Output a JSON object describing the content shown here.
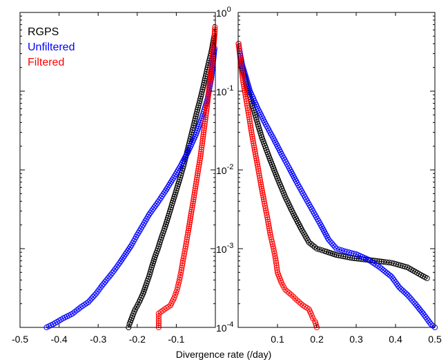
{
  "chart_data": {
    "type": "scatter",
    "xlabel": "Divergence rate (/day)",
    "yscale": "log",
    "ylim": [
      0.0001,
      1
    ],
    "legend": {
      "placement": "top-left",
      "entries": [
        {
          "label": "RGPS",
          "color": "#000000"
        },
        {
          "label": "Unfiltered",
          "color": "#0000ff"
        },
        {
          "label": "Filtered",
          "color": "#ff0000"
        }
      ]
    },
    "y_ticks": [
      {
        "base": "10",
        "exp": "0",
        "value": 1
      },
      {
        "base": "10",
        "exp": "-1",
        "value": 0.1
      },
      {
        "base": "10",
        "exp": "-2",
        "value": 0.01
      },
      {
        "base": "10",
        "exp": "-3",
        "value": 0.001
      },
      {
        "base": "10",
        "exp": "-4",
        "value": 0.0001
      }
    ],
    "panels": [
      {
        "name": "negative",
        "xlim": [
          -0.5,
          0
        ],
        "x_ticks": [
          "-0.5",
          "-0.4",
          "-0.3",
          "-0.2",
          "-0.1"
        ],
        "x_tick_values": [
          -0.5,
          -0.4,
          -0.3,
          -0.2,
          -0.1
        ],
        "series": [
          {
            "key": "rgps",
            "color": "#000000",
            "points": [
              [
                -0.222,
                0.0001
              ],
              [
                -0.22,
                0.00011
              ],
              [
                -0.212,
                0.00014
              ],
              [
                -0.205,
                0.00017
              ],
              [
                -0.195,
                0.00021
              ],
              [
                -0.185,
                0.00027
              ],
              [
                -0.178,
                0.00034
              ],
              [
                -0.17,
                0.00044
              ],
              [
                -0.163,
                0.00058
              ],
              [
                -0.155,
                0.00078
              ],
              [
                -0.147,
                0.001
              ],
              [
                -0.14,
                0.0013
              ],
              [
                -0.13,
                0.0018
              ],
              [
                -0.12,
                0.0026
              ],
              [
                -0.11,
                0.0038
              ],
              [
                -0.1,
                0.0055
              ],
              [
                -0.09,
                0.008
              ],
              [
                -0.08,
                0.012
              ],
              [
                -0.07,
                0.019
              ],
              [
                -0.06,
                0.03
              ],
              [
                -0.05,
                0.048
              ],
              [
                -0.04,
                0.075
              ],
              [
                -0.03,
                0.12
              ],
              [
                -0.02,
                0.2
              ],
              [
                -0.01,
                0.32
              ],
              [
                -0.003,
                0.5
              ]
            ]
          },
          {
            "key": "unfiltered",
            "color": "#0000ff",
            "points": [
              [
                -0.432,
                0.0001
              ],
              [
                -0.415,
                0.00011
              ],
              [
                -0.39,
                0.00013
              ],
              [
                -0.365,
                0.00015
              ],
              [
                -0.345,
                0.00018
              ],
              [
                -0.325,
                0.00021
              ],
              [
                -0.305,
                0.00027
              ],
              [
                -0.29,
                0.00034
              ],
              [
                -0.275,
                0.00042
              ],
              [
                -0.26,
                0.00052
              ],
              [
                -0.245,
                0.00066
              ],
              [
                -0.23,
                0.00085
              ],
              [
                -0.215,
                0.0011
              ],
              [
                -0.2,
                0.0015
              ],
              [
                -0.185,
                0.002
              ],
              [
                -0.17,
                0.0027
              ],
              [
                -0.15,
                0.0037
              ],
              [
                -0.13,
                0.0052
              ],
              [
                -0.11,
                0.0075
              ],
              [
                -0.09,
                0.011
              ],
              [
                -0.07,
                0.017
              ],
              [
                -0.05,
                0.028
              ],
              [
                -0.035,
                0.045
              ],
              [
                -0.02,
                0.08
              ],
              [
                -0.01,
                0.15
              ],
              [
                -0.002,
                0.35
              ]
            ]
          },
          {
            "key": "filtered",
            "color": "#ff0000",
            "points": [
              [
                -0.145,
                0.0001
              ],
              [
                -0.145,
                0.00012
              ],
              [
                -0.145,
                0.00015
              ],
              [
                -0.13,
                0.00017
              ],
              [
                -0.115,
                0.00019
              ],
              [
                -0.105,
                0.00024
              ],
              [
                -0.098,
                0.0003
              ],
              [
                -0.092,
                0.0004
              ],
              [
                -0.088,
                0.0005
              ],
              [
                -0.083,
                0.0007
              ],
              [
                -0.077,
                0.001
              ],
              [
                -0.07,
                0.0016
              ],
              [
                -0.063,
                0.0026
              ],
              [
                -0.055,
                0.0045
              ],
              [
                -0.047,
                0.008
              ],
              [
                -0.038,
                0.015
              ],
              [
                -0.03,
                0.03
              ],
              [
                -0.022,
                0.06
              ],
              [
                -0.015,
                0.12
              ],
              [
                -0.008,
                0.25
              ],
              [
                -0.003,
                0.45
              ],
              [
                -0.001,
                0.65
              ]
            ]
          }
        ]
      },
      {
        "name": "positive",
        "xlim": [
          0,
          0.5
        ],
        "x_ticks": [
          "0.1",
          "0.2",
          "0.3",
          "0.4",
          "0.5"
        ],
        "x_tick_values": [
          0.1,
          0.2,
          0.3,
          0.4,
          0.5
        ],
        "series": [
          {
            "key": "rgps",
            "color": "#000000",
            "points": [
              [
                0.001,
                0.4
              ],
              [
                0.005,
                0.28
              ],
              [
                0.01,
                0.2
              ],
              [
                0.02,
                0.13
              ],
              [
                0.03,
                0.085
              ],
              [
                0.04,
                0.057
              ],
              [
                0.05,
                0.038
              ],
              [
                0.06,
                0.026
              ],
              [
                0.08,
                0.014
              ],
              [
                0.1,
                0.0078
              ],
              [
                0.12,
                0.0045
              ],
              [
                0.14,
                0.0028
              ],
              [
                0.16,
                0.0018
              ],
              [
                0.18,
                0.0012
              ],
              [
                0.2,
                0.001
              ],
              [
                0.22,
                0.00093
              ],
              [
                0.25,
                0.00083
              ],
              [
                0.29,
                0.00076
              ],
              [
                0.33,
                0.00072
              ],
              [
                0.37,
                0.00068
              ],
              [
                0.39,
                0.00066
              ],
              [
                0.43,
                0.00058
              ],
              [
                0.48,
                0.00042
              ]
            ]
          },
          {
            "key": "unfiltered",
            "color": "#0000ff",
            "points": [
              [
                0.001,
                0.4
              ],
              [
                0.005,
                0.3
              ],
              [
                0.01,
                0.22
              ],
              [
                0.02,
                0.15
              ],
              [
                0.03,
                0.1
              ],
              [
                0.05,
                0.06
              ],
              [
                0.07,
                0.038
              ],
              [
                0.09,
                0.025
              ],
              [
                0.11,
                0.016
              ],
              [
                0.13,
                0.0105
              ],
              [
                0.15,
                0.0068
              ],
              [
                0.17,
                0.0045
              ],
              [
                0.19,
                0.003
              ],
              [
                0.21,
                0.002
              ],
              [
                0.23,
                0.0013
              ],
              [
                0.25,
                0.001
              ],
              [
                0.27,
                0.00093
              ],
              [
                0.3,
                0.00085
              ],
              [
                0.33,
                0.00073
              ],
              [
                0.36,
                0.00058
              ],
              [
                0.39,
                0.00044
              ],
              [
                0.41,
                0.00032
              ],
              [
                0.43,
                0.00026
              ],
              [
                0.45,
                0.0002
              ],
              [
                0.47,
                0.00015
              ],
              [
                0.49,
                0.00011
              ],
              [
                0.5,
                0.0001
              ]
            ]
          },
          {
            "key": "filtered",
            "color": "#ff0000",
            "points": [
              [
                0.001,
                0.4
              ],
              [
                0.004,
                0.3
              ],
              [
                0.008,
                0.2
              ],
              [
                0.013,
                0.13
              ],
              [
                0.02,
                0.08
              ],
              [
                0.027,
                0.05
              ],
              [
                0.034,
                0.03
              ],
              [
                0.042,
                0.018
              ],
              [
                0.05,
                0.011
              ],
              [
                0.058,
                0.0065
              ],
              [
                0.066,
                0.004
              ],
              [
                0.074,
                0.0025
              ],
              [
                0.082,
                0.0015
              ],
              [
                0.09,
                0.001
              ],
              [
                0.095,
                0.00075
              ],
              [
                0.1,
                0.0005
              ],
              [
                0.11,
                0.00037
              ],
              [
                0.12,
                0.0003
              ],
              [
                0.135,
                0.00026
              ],
              [
                0.15,
                0.00022
              ],
              [
                0.165,
                0.00019
              ],
              [
                0.18,
                0.00017
              ],
              [
                0.185,
                0.00015
              ],
              [
                0.19,
                0.00013
              ],
              [
                0.195,
                0.00012
              ],
              [
                0.2,
                0.0001
              ]
            ]
          }
        ]
      }
    ]
  }
}
